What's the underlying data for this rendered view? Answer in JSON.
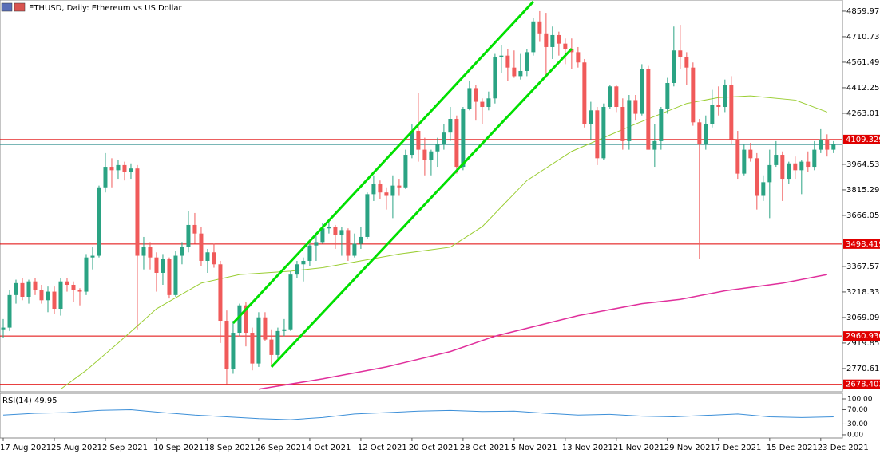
{
  "chart_data": {
    "type": "candlestick",
    "title": "ETHUSD, Daily:  Ethereum vs US Dollar",
    "up_color": "#2aa383",
    "down_color": "#f05a5a",
    "xlim": [
      -0.5,
      131.4
    ],
    "ylim": [
      2635,
      4925
    ],
    "yticks": [
      {
        "value": 4859.97,
        "label": "4859.970"
      },
      {
        "value": 4710.73,
        "label": "4710.730"
      },
      {
        "value": 4561.49,
        "label": "4561.490"
      },
      {
        "value": 4412.25,
        "label": "4412.250"
      },
      {
        "value": 4263.01,
        "label": "4263.010"
      },
      {
        "value": 3964.53,
        "label": "3964.530"
      },
      {
        "value": 3815.29,
        "label": "3815.290"
      },
      {
        "value": 3666.05,
        "label": "3666.050"
      },
      {
        "value": 3367.57,
        "label": "3367.570"
      },
      {
        "value": 3218.33,
        "label": "3218.330"
      },
      {
        "value": 3069.09,
        "label": "3069.090"
      },
      {
        "value": 2919.85,
        "label": "2919.850"
      },
      {
        "value": 2770.61,
        "label": "2770.610"
      }
    ],
    "xticks": [
      {
        "value": 0,
        "label": "17 Aug 2021"
      },
      {
        "value": 8,
        "label": "25 Aug 2021"
      },
      {
        "value": 16,
        "label": "2 Sep 2021"
      },
      {
        "value": 24,
        "label": "10 Sep 2021"
      },
      {
        "value": 32,
        "label": "18 Sep 2021"
      },
      {
        "value": 40,
        "label": "26 Sep 2021"
      },
      {
        "value": 48,
        "label": "4 Oct 2021"
      },
      {
        "value": 56,
        "label": "12 Oct 2021"
      },
      {
        "value": 64,
        "label": "20 Oct 2021"
      },
      {
        "value": 72,
        "label": "28 Oct 2021"
      },
      {
        "value": 80,
        "label": "5 Nov 2021"
      },
      {
        "value": 88,
        "label": "13 Nov 2021"
      },
      {
        "value": 96,
        "label": "21 Nov 2021"
      },
      {
        "value": 104,
        "label": "29 Nov 2021"
      },
      {
        "value": 112,
        "label": "7 Dec 2021"
      },
      {
        "value": 120,
        "label": "15 Dec 2021"
      },
      {
        "value": 128,
        "label": "23 Dec 2021"
      }
    ],
    "levels": {
      "color": "#e00000",
      "lines": [
        {
          "value": 4109.329,
          "label": "4109.329"
        },
        {
          "value": 3498.419,
          "label": "3498.419"
        },
        {
          "value": 2960.93,
          "label": "2960.930"
        },
        {
          "value": 2678.403,
          "label": "2678.403"
        }
      ]
    },
    "price_line_color": "#2a8c8c",
    "candles": [
      [
        3000,
        3060,
        2950,
        3010
      ],
      [
        3010,
        3230,
        2990,
        3200
      ],
      [
        3200,
        3290,
        3150,
        3270
      ],
      [
        3270,
        3300,
        3170,
        3190
      ],
      [
        3190,
        3290,
        3150,
        3280
      ],
      [
        3280,
        3300,
        3200,
        3230
      ],
      [
        3230,
        3260,
        3150,
        3170
      ],
      [
        3170,
        3250,
        3100,
        3220
      ],
      [
        3220,
        3250,
        3090,
        3120
      ],
      [
        3120,
        3300,
        3080,
        3280
      ],
      [
        3280,
        3300,
        3220,
        3260
      ],
      [
        3260,
        3280,
        3160,
        3230
      ],
      [
        3230,
        3240,
        3140,
        3220
      ],
      [
        3220,
        3440,
        3200,
        3420
      ],
      [
        3420,
        3480,
        3350,
        3430
      ],
      [
        3430,
        3840,
        3420,
        3830
      ],
      [
        3830,
        4030,
        3800,
        3950
      ],
      [
        3950,
        4000,
        3830,
        3930
      ],
      [
        3930,
        3990,
        3880,
        3960
      ],
      [
        3960,
        3980,
        3870,
        3920
      ],
      [
        3920,
        3970,
        3880,
        3940
      ],
      [
        3940,
        3960,
        3000,
        3430
      ],
      [
        3430,
        3540,
        3350,
        3480
      ],
      [
        3480,
        3510,
        3350,
        3420
      ],
      [
        3420,
        3450,
        3220,
        3330
      ],
      [
        3330,
        3440,
        3260,
        3410
      ],
      [
        3410,
        3420,
        3180,
        3200
      ],
      [
        3200,
        3460,
        3190,
        3430
      ],
      [
        3430,
        3510,
        3380,
        3480
      ],
      [
        3480,
        3690,
        3450,
        3610
      ],
      [
        3610,
        3680,
        3500,
        3560
      ],
      [
        3560,
        3600,
        3370,
        3400
      ],
      [
        3400,
        3470,
        3330,
        3450
      ],
      [
        3450,
        3500,
        3360,
        3380
      ],
      [
        3380,
        3400,
        2920,
        3050
      ],
      [
        3050,
        3110,
        2680,
        2770
      ],
      [
        2770,
        3050,
        2740,
        2980
      ],
      [
        2980,
        3150,
        2960,
        3140
      ],
      [
        3140,
        3160,
        2900,
        2980
      ],
      [
        2980,
        3010,
        2760,
        2800
      ],
      [
        2800,
        3100,
        2780,
        3070
      ],
      [
        3070,
        3100,
        2930,
        2940
      ],
      [
        2940,
        3000,
        2780,
        2850
      ],
      [
        2850,
        3010,
        2820,
        2990
      ],
      [
        2990,
        3060,
        2960,
        3000
      ],
      [
        3000,
        3340,
        2990,
        3320
      ],
      [
        3320,
        3400,
        3300,
        3380
      ],
      [
        3380,
        3420,
        3280,
        3400
      ],
      [
        3400,
        3500,
        3370,
        3490
      ],
      [
        3490,
        3560,
        3400,
        3510
      ],
      [
        3510,
        3620,
        3500,
        3590
      ],
      [
        3590,
        3630,
        3560,
        3600
      ],
      [
        3600,
        3610,
        3470,
        3550
      ],
      [
        3550,
        3600,
        3430,
        3580
      ],
      [
        3580,
        3590,
        3400,
        3430
      ],
      [
        3430,
        3560,
        3420,
        3500
      ],
      [
        3500,
        3600,
        3470,
        3540
      ],
      [
        3540,
        3800,
        3530,
        3790
      ],
      [
        3790,
        3900,
        3750,
        3850
      ],
      [
        3850,
        3870,
        3760,
        3800
      ],
      [
        3800,
        3830,
        3700,
        3780
      ],
      [
        3780,
        3900,
        3650,
        3840
      ],
      [
        3840,
        3880,
        3780,
        3830
      ],
      [
        3830,
        4050,
        3820,
        4020
      ],
      [
        4020,
        4200,
        4000,
        4160
      ],
      [
        4160,
        4380,
        3980,
        4050
      ],
      [
        4050,
        4120,
        3900,
        3990
      ],
      [
        3990,
        4050,
        3900,
        4040
      ],
      [
        4040,
        4120,
        3950,
        4080
      ],
      [
        4080,
        4200,
        4050,
        4150
      ],
      [
        4150,
        4300,
        4100,
        4230
      ],
      [
        4230,
        4250,
        3910,
        3950
      ],
      [
        3950,
        4300,
        3930,
        4290
      ],
      [
        4290,
        4450,
        4280,
        4410
      ],
      [
        4410,
        4430,
        4220,
        4330
      ],
      [
        4330,
        4350,
        4200,
        4300
      ],
      [
        4300,
        4390,
        4280,
        4350
      ],
      [
        4350,
        4610,
        4320,
        4590
      ],
      [
        4590,
        4660,
        4500,
        4600
      ],
      [
        4600,
        4640,
        4450,
        4530
      ],
      [
        4530,
        4630,
        4470,
        4480
      ],
      [
        4480,
        4610,
        4460,
        4510
      ],
      [
        4510,
        4640,
        4480,
        4620
      ],
      [
        4620,
        4820,
        4600,
        4800
      ],
      [
        4800,
        4860,
        4680,
        4730
      ],
      [
        4730,
        4850,
        4470,
        4650
      ],
      [
        4650,
        4770,
        4580,
        4720
      ],
      [
        4720,
        4740,
        4600,
        4670
      ],
      [
        4670,
        4700,
        4550,
        4640
      ],
      [
        4640,
        4700,
        4520,
        4620
      ],
      [
        4620,
        4650,
        4530,
        4560
      ],
      [
        4560,
        4580,
        4180,
        4200
      ],
      [
        4200,
        4330,
        4110,
        4280
      ],
      [
        4280,
        4300,
        3960,
        4000
      ],
      [
        4000,
        4320,
        3990,
        4300
      ],
      [
        4300,
        4430,
        4290,
        4420
      ],
      [
        4420,
        4430,
        4270,
        4300
      ],
      [
        4300,
        4350,
        4050,
        4100
      ],
      [
        4100,
        4370,
        4050,
        4340
      ],
      [
        4340,
        4370,
        4220,
        4260
      ],
      [
        4260,
        4550,
        4250,
        4520
      ],
      [
        4520,
        4540,
        4050,
        4050
      ],
      [
        4050,
        4200,
        3950,
        4100
      ],
      [
        4100,
        4300,
        4050,
        4290
      ],
      [
        4290,
        4470,
        4260,
        4440
      ],
      [
        4440,
        4770,
        4420,
        4630
      ],
      [
        4630,
        4780,
        4520,
        4590
      ],
      [
        4590,
        4620,
        4430,
        4530
      ],
      [
        4530,
        4560,
        4190,
        4210
      ],
      [
        4210,
        4230,
        3410,
        4080
      ],
      [
        4080,
        4250,
        4050,
        4200
      ],
      [
        4200,
        4400,
        4180,
        4310
      ],
      [
        4310,
        4420,
        4250,
        4300
      ],
      [
        4300,
        4460,
        4270,
        4430
      ],
      [
        4430,
        4480,
        4080,
        4110
      ],
      [
        4110,
        4160,
        3880,
        3910
      ],
      [
        3910,
        4080,
        3900,
        4050
      ],
      [
        4050,
        4090,
        3980,
        4000
      ],
      [
        4000,
        4030,
        3700,
        3780
      ],
      [
        3780,
        3900,
        3750,
        3860
      ],
      [
        3860,
        4050,
        3650,
        3960
      ],
      [
        3960,
        4100,
        3950,
        4020
      ],
      [
        4020,
        4040,
        3750,
        3880
      ],
      [
        3880,
        3980,
        3850,
        3970
      ],
      [
        3970,
        4010,
        3880,
        3930
      ],
      [
        3930,
        3990,
        3790,
        3980
      ],
      [
        3980,
        4040,
        3920,
        3950
      ],
      [
        3950,
        4100,
        3930,
        4050
      ],
      [
        4050,
        4170,
        4030,
        4110
      ],
      [
        4110,
        4140,
        4010,
        4050
      ],
      [
        4050,
        4100,
        4030,
        4080
      ]
    ],
    "series": [
      {
        "color": "#9acd32",
        "x": [
          9,
          13,
          18,
          24,
          31,
          37,
          45,
          50,
          62,
          70,
          75,
          82,
          89,
          99,
          107,
          112,
          117,
          124,
          129
        ],
        "values": [
          2650,
          2760,
          2920,
          3120,
          3270,
          3320,
          3340,
          3360,
          3440,
          3480,
          3600,
          3870,
          4040,
          4200,
          4320,
          4355,
          4365,
          4340,
          4270
        ]
      },
      {
        "color": "#e0309c",
        "x": [
          40,
          50,
          60,
          70,
          77,
          90,
          100,
          106,
          113,
          122,
          129
        ],
        "values": [
          2650,
          2710,
          2780,
          2870,
          2960,
          3080,
          3150,
          3175,
          3225,
          3270,
          3320
        ]
      }
    ],
    "trend_lines": {
      "color": "#00e000",
      "lines": [
        [
          [
            36,
            3036
          ],
          [
            83,
            4916
          ]
        ],
        [
          [
            42,
            2780
          ],
          [
            89,
            4640
          ]
        ]
      ]
    },
    "rsi": {
      "title": "RSI(14) 49.95",
      "color": "#3c8fd8",
      "ylim": [
        -9,
        120
      ],
      "yticks": [
        {
          "value": 100,
          "label": "100.00"
        },
        {
          "value": 70,
          "label": "70.00"
        },
        {
          "value": 30,
          "label": "30.00"
        },
        {
          "value": 0,
          "label": "0.00"
        }
      ],
      "x": [
        0,
        5,
        10,
        15,
        20,
        25,
        30,
        35,
        40,
        45,
        50,
        55,
        60,
        65,
        70,
        75,
        80,
        85,
        90,
        95,
        100,
        105,
        110,
        115,
        120,
        125,
        130
      ],
      "values": [
        55,
        60,
        62,
        68,
        70,
        62,
        55,
        50,
        45,
        42,
        48,
        58,
        62,
        66,
        68,
        65,
        66,
        60,
        55,
        57,
        52,
        50,
        54,
        58,
        50,
        48,
        49.95
      ]
    }
  }
}
